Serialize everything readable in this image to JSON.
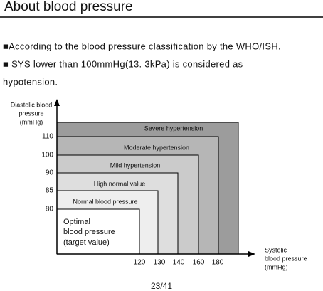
{
  "header": {
    "title": "About blood pressure"
  },
  "paragraphs": [
    "■According to the blood pressure classification by the WHO/ISH.",
    "■ SYS lower than 100mmHg(13. 3kPa) is considered as",
    "hypotension."
  ],
  "diagram": {
    "y_axis_label": [
      "Diastolic blood",
      "pressure",
      "(mmHg)"
    ],
    "x_axis_label": [
      "Systolic",
      "blood pressure",
      "(mmHg)"
    ],
    "y_ticks": [
      "110",
      "100",
      "90",
      "85",
      "80"
    ],
    "x_ticks": [
      "120",
      "130",
      "140",
      "160",
      "180"
    ],
    "zones": [
      "Severe hypertension",
      "Moderate hypertension",
      "Mild hypertension",
      "High normal value",
      "Normal blood pressure"
    ],
    "optimal": [
      "Optimal",
      "blood pressure",
      "(target value)"
    ]
  },
  "footer": {
    "page": "23/41"
  }
}
